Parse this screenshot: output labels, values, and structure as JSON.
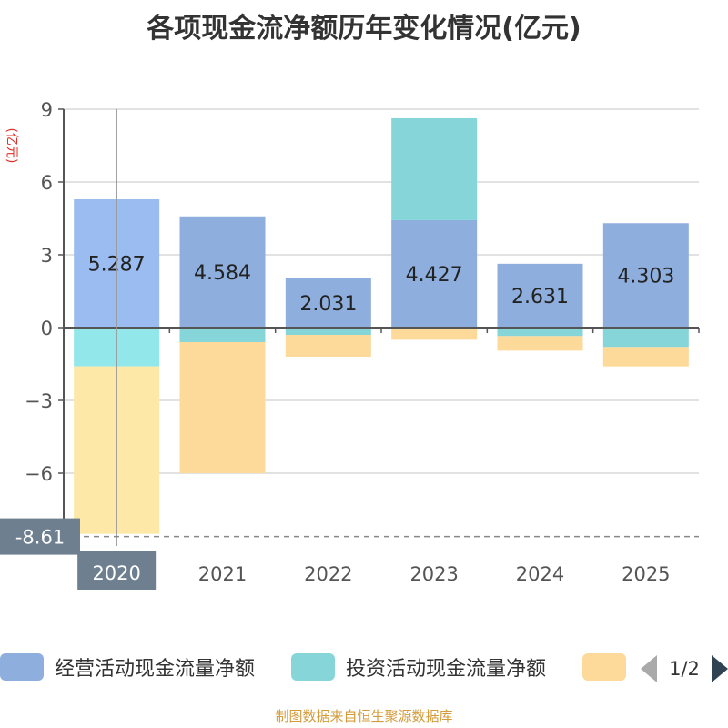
{
  "chart_data": {
    "type": "bar",
    "stacked": true,
    "title": "各项现金流净额历年变化情况(亿元)",
    "ylabel": "(亿元)",
    "categories": [
      "2020",
      "2021",
      "2022",
      "2023",
      "2024",
      "2025"
    ],
    "ylim": [
      -9,
      9
    ],
    "yticks": [
      9,
      6,
      3,
      0,
      -3,
      -6
    ],
    "series": [
      {
        "name": "经营活动现金流量净额",
        "color": "#8eaedd",
        "values": [
          5.287,
          4.584,
          2.031,
          4.427,
          2.631,
          4.303
        ]
      },
      {
        "name": "投资活动现金流量净额",
        "color": "#86d5d8",
        "values": [
          -1.6,
          -0.6,
          -0.3,
          4.2,
          -0.35,
          -0.8
        ]
      },
      {
        "name": "",
        "color": "#fdd99a",
        "values": [
          -6.9,
          -5.4,
          -0.9,
          -0.5,
          -0.6,
          -0.8
        ]
      }
    ],
    "data_labels": [
      "5.287",
      "4.584",
      "2.031",
      "4.427",
      "2.631",
      "4.303"
    ],
    "crosshair": {
      "category": "2020",
      "value_label": "-8.61",
      "value": -8.61
    },
    "legend_position": "bottom",
    "pager": "1/2"
  },
  "footer": "制图数据来自恒生聚源数据库"
}
